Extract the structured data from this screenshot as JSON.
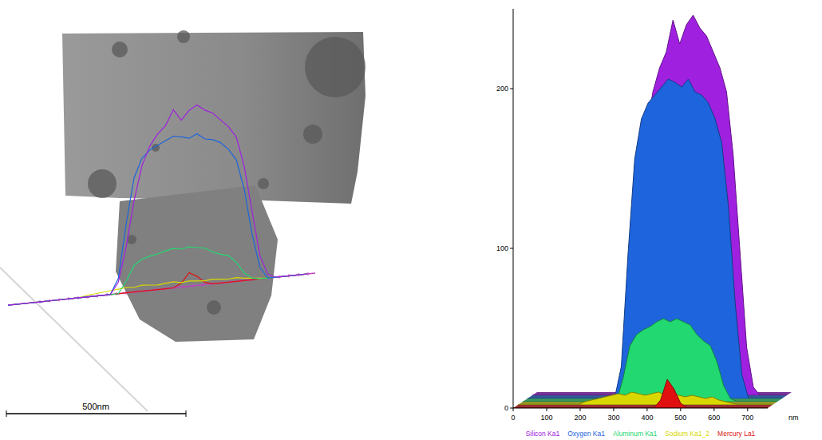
{
  "micrograph": {
    "scale_bar": "500nm"
  },
  "chart_data": {
    "type": "area",
    "xlabel": "nm",
    "x": [
      0,
      20,
      40,
      60,
      80,
      100,
      120,
      140,
      160,
      180,
      200,
      220,
      240,
      260,
      280,
      300,
      320,
      340,
      360,
      380,
      400,
      420,
      440,
      460,
      480,
      500,
      520,
      540,
      560,
      580,
      600,
      620,
      640,
      660,
      680,
      700,
      720,
      740,
      760
    ],
    "series": [
      {
        "name": "Silicon Ka1",
        "color": "#a020e0",
        "values": [
          0,
          0,
          0,
          0,
          0,
          0,
          0,
          0,
          0,
          0,
          0,
          0,
          0,
          0,
          15,
          60,
          120,
          165,
          190,
          205,
          215,
          235,
          220,
          232,
          238,
          230,
          225,
          215,
          205,
          190,
          150,
          90,
          30,
          5,
          0,
          0,
          0,
          0,
          0
        ]
      },
      {
        "name": "Oxygen Ka1",
        "color": "#1e64dc",
        "values": [
          0,
          0,
          0,
          0,
          0,
          0,
          0,
          0,
          0,
          0,
          0,
          0,
          0,
          0,
          20,
          90,
          150,
          175,
          185,
          190,
          195,
          200,
          198,
          195,
          200,
          192,
          190,
          185,
          175,
          160,
          120,
          60,
          15,
          0,
          0,
          0,
          0,
          0,
          0
        ]
      },
      {
        "name": "Aluminum Ka1",
        "color": "#22d870",
        "values": [
          0,
          0,
          0,
          0,
          0,
          0,
          0,
          0,
          0,
          0,
          0,
          0,
          0,
          0,
          0,
          15,
          35,
          42,
          45,
          47,
          50,
          52,
          50,
          52,
          50,
          48,
          42,
          38,
          35,
          25,
          10,
          2,
          0,
          0,
          0,
          0,
          0,
          0,
          0
        ]
      },
      {
        "name": "Sodium Ka1_2",
        "color": "#d8d800",
        "values": [
          0,
          0,
          0,
          0,
          0,
          0,
          0,
          0,
          0,
          0,
          2,
          3,
          4,
          5,
          6,
          7,
          6,
          8,
          7,
          6,
          7,
          8,
          6,
          7,
          6,
          5,
          6,
          5,
          4,
          5,
          3,
          2,
          1,
          0,
          0,
          0,
          0,
          0,
          0
        ]
      },
      {
        "name": "Mercury La1",
        "color": "#e01010",
        "values": [
          0,
          0,
          0,
          0,
          0,
          0,
          0,
          0,
          0,
          0,
          0,
          0,
          0,
          0,
          0,
          0,
          0,
          0,
          0,
          0,
          0,
          0,
          5,
          18,
          12,
          3,
          0,
          0,
          0,
          0,
          0,
          0,
          0,
          0,
          0,
          0,
          0,
          0,
          0
        ]
      }
    ],
    "xlim": [
      0,
      760
    ],
    "ylim": [
      0,
      250
    ],
    "xticks": [
      0,
      100,
      200,
      300,
      400,
      500,
      600,
      700
    ],
    "yticks": [
      0,
      100,
      200
    ],
    "legend": "bottom"
  }
}
